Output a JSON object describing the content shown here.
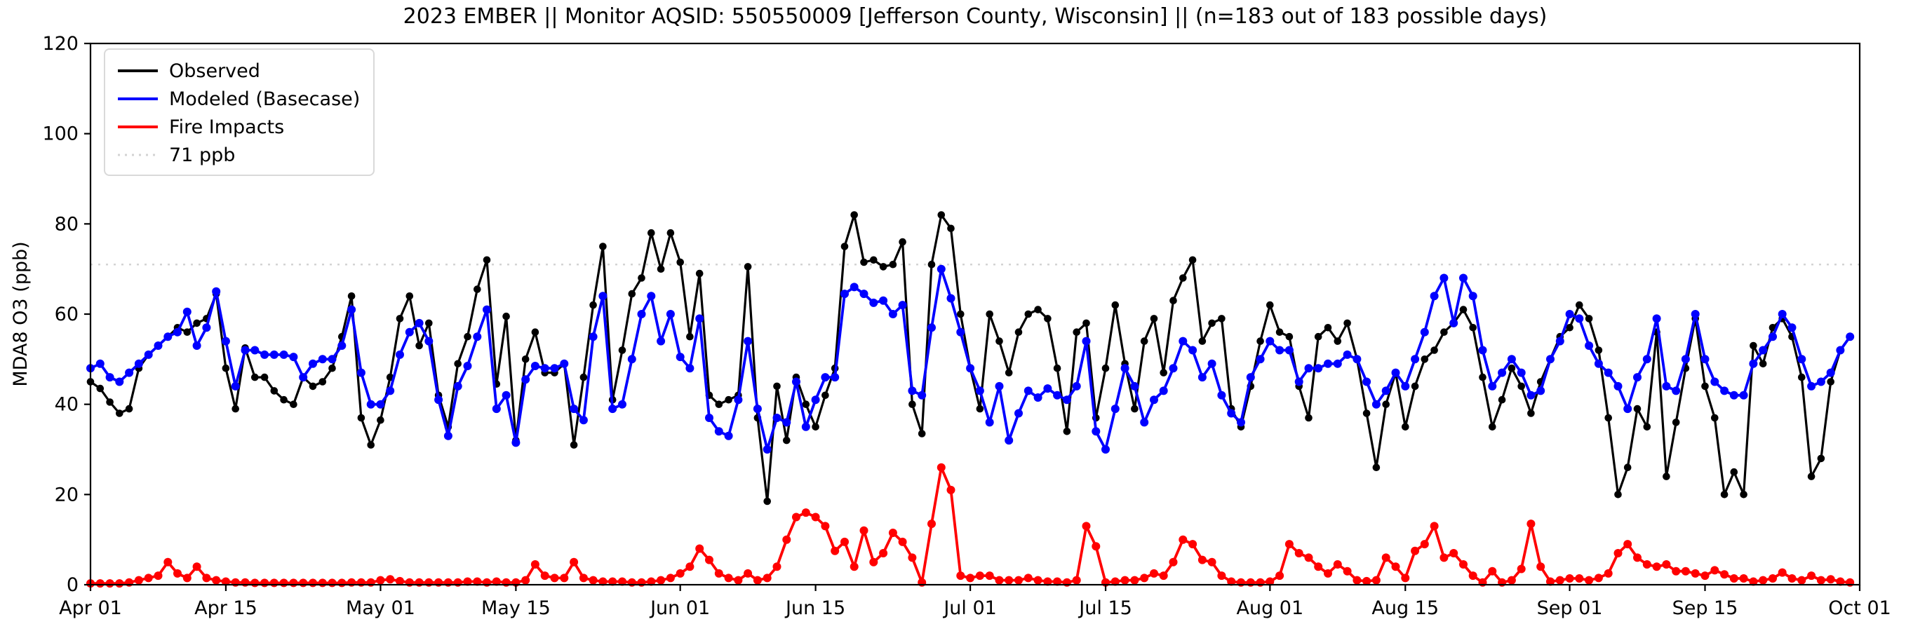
{
  "title": "2023 EMBER || Monitor AQSID: 550550009 [Jefferson County, Wisconsin] || (n=183 out of 183 possible days)",
  "ylabel": "MDA8 O3 (ppb)",
  "legend_entries": [
    "Observed",
    "Modeled (Basecase)",
    "Fire Impacts",
    "71 ppb"
  ],
  "chart_data": {
    "type": "line",
    "title": "2023 EMBER || Monitor AQSID: 550550009 [Jefferson County, Wisconsin] || (n=183 out of 183 possible days)",
    "xlabel": "",
    "ylabel": "MDA8 O3 (ppb)",
    "ylim": [
      0,
      120
    ],
    "yticks": [
      0,
      20,
      40,
      60,
      80,
      100,
      120
    ],
    "x_start": "Apr 01",
    "x_end": "Sep 30",
    "n_days": 183,
    "grid": false,
    "legend_position": "upper left",
    "xticks": [
      {
        "label": "Apr 01",
        "day": 0
      },
      {
        "label": "Apr 15",
        "day": 14
      },
      {
        "label": "May 01",
        "day": 30
      },
      {
        "label": "May 15",
        "day": 44
      },
      {
        "label": "Jun 01",
        "day": 61
      },
      {
        "label": "Jun 15",
        "day": 75
      },
      {
        "label": "Jul 01",
        "day": 91
      },
      {
        "label": "Jul 15",
        "day": 105
      },
      {
        "label": "Aug 01",
        "day": 122
      },
      {
        "label": "Aug 15",
        "day": 136
      },
      {
        "label": "Sep 01",
        "day": 153
      },
      {
        "label": "Sep 15",
        "day": 167
      },
      {
        "label": "Oct 01",
        "day": 183
      }
    ],
    "threshold": {
      "label": "71 ppb",
      "value": 71,
      "color": "#d3d3d3"
    },
    "series": [
      {
        "name": "Observed",
        "color": "#000000",
        "values": [
          45,
          43.5,
          40.5,
          38,
          39,
          48,
          51,
          53,
          55,
          57,
          56,
          58,
          59,
          64.5,
          48,
          39,
          52.5,
          46,
          46,
          43,
          41,
          40,
          46,
          44,
          45,
          48,
          55,
          64,
          37,
          31,
          36.5,
          46,
          59,
          64,
          53,
          58,
          42,
          35,
          49,
          55,
          65.5,
          72,
          44.5,
          59.5,
          32,
          50,
          56,
          47,
          47,
          49,
          31,
          46,
          62,
          75,
          41,
          52,
          64.5,
          68,
          78,
          70,
          78,
          71.5,
          55,
          69,
          42,
          40,
          41,
          42,
          70.5,
          37,
          18.5,
          44,
          32,
          46,
          40,
          35,
          42,
          48,
          75,
          82,
          71.5,
          72,
          70.5,
          71,
          76,
          40,
          33.5,
          71,
          82,
          79,
          60,
          48,
          39,
          60,
          54,
          47,
          56,
          60,
          61,
          59,
          48,
          34,
          56,
          58,
          37,
          48,
          62,
          49,
          39,
          54,
          59,
          47,
          63,
          68,
          72,
          54,
          58,
          59,
          39,
          35,
          44,
          54,
          62,
          56,
          55,
          44,
          37,
          55,
          57,
          54,
          58,
          50,
          38,
          26,
          40,
          47,
          35,
          44,
          50,
          52,
          56,
          58,
          61,
          57,
          46,
          35,
          41,
          48,
          44,
          38,
          45,
          50,
          55,
          57,
          62,
          59,
          52,
          37,
          20,
          26,
          39,
          35,
          56,
          24,
          36,
          48,
          59,
          44,
          37,
          20,
          25,
          20,
          53,
          49,
          57,
          59,
          55,
          46,
          24,
          28,
          45,
          52,
          55
        ]
      },
      {
        "name": "Modeled (Basecase)",
        "color": "#0000ff",
        "values": [
          48,
          49,
          46,
          45,
          47,
          49,
          51,
          53,
          55,
          56,
          60.5,
          53,
          57,
          65,
          54,
          44,
          52,
          52,
          51,
          51,
          51,
          50.5,
          46,
          49,
          50,
          50,
          53,
          61,
          47,
          40,
          40,
          43,
          51,
          56,
          58,
          54,
          41,
          33,
          44,
          48.5,
          55,
          61,
          39,
          42,
          31.5,
          45.5,
          48.5,
          48,
          48,
          49,
          39,
          36.5,
          55,
          64,
          39,
          40,
          50,
          60,
          64,
          54,
          60,
          50.5,
          48,
          59,
          37,
          34,
          33,
          41,
          54,
          39,
          30,
          37,
          36,
          45,
          35,
          41,
          46,
          46,
          64.5,
          66,
          64.5,
          62.5,
          63,
          60,
          62,
          43,
          42,
          57,
          70,
          63.5,
          56,
          48,
          43,
          36,
          44,
          32,
          38,
          43,
          41.5,
          43.5,
          42,
          41,
          44,
          54,
          34,
          30,
          39,
          48,
          44,
          36,
          41,
          43,
          48,
          54,
          52,
          46,
          49,
          42,
          38,
          36,
          46,
          50,
          54,
          52,
          52,
          45,
          48,
          48,
          49,
          49,
          51,
          50,
          45,
          40,
          43,
          47,
          44,
          50,
          56,
          64,
          68,
          58,
          68,
          64,
          52,
          44,
          47,
          50,
          47,
          42,
          43,
          50,
          54,
          60,
          59,
          53,
          49,
          47,
          44,
          39,
          46,
          50,
          59,
          44,
          43,
          50,
          60,
          50,
          45,
          43,
          42,
          42,
          49,
          52,
          55,
          60,
          57,
          50,
          44,
          45,
          47,
          52,
          55
        ]
      },
      {
        "name": "Fire Impacts",
        "color": "#ff0000",
        "values": [
          0.3,
          0.3,
          0.3,
          0.3,
          0.5,
          1,
          1.5,
          2,
          5,
          2.5,
          1.5,
          4,
          1.5,
          1,
          0.7,
          0.5,
          0.5,
          0.4,
          0.4,
          0.4,
          0.4,
          0.4,
          0.4,
          0.4,
          0.4,
          0.4,
          0.4,
          0.5,
          0.5,
          0.5,
          1,
          1.2,
          0.8,
          0.5,
          0.5,
          0.5,
          0.5,
          0.5,
          0.5,
          0.7,
          0.7,
          0.5,
          0.7,
          0.5,
          0.5,
          1,
          4.5,
          2,
          1.5,
          1.5,
          5,
          1.5,
          1,
          0.7,
          0.7,
          0.7,
          0.5,
          0.5,
          0.7,
          1,
          1.5,
          2.5,
          4,
          8,
          5.5,
          2.5,
          1.5,
          1,
          2.5,
          1,
          1.5,
          4,
          10,
          15,
          16,
          15,
          13,
          7.5,
          9.5,
          4,
          12,
          5,
          7,
          11.5,
          9.5,
          6,
          0.5,
          13.5,
          26,
          21,
          2,
          1.5,
          2,
          2,
          1,
          1,
          1,
          1.5,
          1,
          0.7,
          0.7,
          0.5,
          1,
          13,
          8.5,
          0.5,
          0.7,
          1,
          1,
          1.5,
          2.5,
          2,
          5,
          10,
          9,
          5.5,
          5,
          2,
          0.7,
          0.5,
          0.5,
          0.5,
          0.7,
          2,
          9,
          7,
          6,
          4,
          2.5,
          4.5,
          3,
          1,
          0.8,
          1,
          6,
          4,
          1.5,
          7.5,
          9,
          13,
          6,
          7,
          4.5,
          2,
          0.5,
          3,
          0.5,
          1,
          3.5,
          13.5,
          4,
          0.7,
          1,
          1.4,
          1.4,
          1,
          1.5,
          2.5,
          7,
          9,
          6,
          4.5,
          4,
          4.5,
          3,
          3,
          2.5,
          2,
          3.2,
          2.3,
          1.4,
          1.4,
          0.7,
          1,
          1.4,
          2.7,
          1.4,
          1,
          2,
          1,
          1.2,
          0.7,
          0.5
        ]
      }
    ]
  }
}
